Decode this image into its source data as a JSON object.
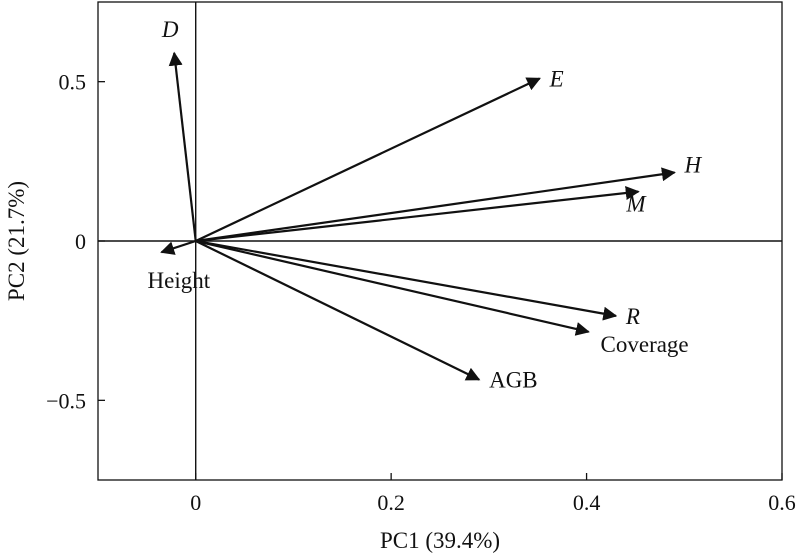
{
  "chart_data": {
    "type": "scatter",
    "subtype": "pca-biplot-vectors",
    "xlabel": "PC1 (39.4%)",
    "ylabel": "PC2 (21.7%)",
    "xlim": [
      -0.1,
      0.6
    ],
    "ylim": [
      -0.75,
      0.75
    ],
    "x_ticks": [
      {
        "value": 0,
        "label": "0"
      },
      {
        "value": 0.2,
        "label": "0.2"
      },
      {
        "value": 0.4,
        "label": "0.4"
      },
      {
        "value": 0.6,
        "label": "0.6"
      }
    ],
    "y_ticks": [
      {
        "value": 0.5,
        "label": "0.5"
      },
      {
        "value": 0,
        "label": "0"
      },
      {
        "value": -0.5,
        "label": "−0.5"
      }
    ],
    "zero_lines": true,
    "grid": false,
    "vectors": [
      {
        "name": "D",
        "x": -0.022,
        "y": 0.59,
        "italic": true,
        "anchor": "above"
      },
      {
        "name": "E",
        "x": 0.352,
        "y": 0.51,
        "italic": true,
        "anchor": "right"
      },
      {
        "name": "H",
        "x": 0.49,
        "y": 0.215,
        "italic": true,
        "anchor": "right-up"
      },
      {
        "name": "M",
        "x": 0.453,
        "y": 0.155,
        "italic": true,
        "anchor": "right-down"
      },
      {
        "name": "R",
        "x": 0.43,
        "y": -0.235,
        "italic": true,
        "anchor": "right"
      },
      {
        "name": "Coverage",
        "x": 0.402,
        "y": -0.285,
        "italic": false,
        "anchor": "below-right"
      },
      {
        "name": "AGB",
        "x": 0.29,
        "y": -0.435,
        "italic": false,
        "anchor": "right"
      },
      {
        "name": "Height",
        "x": -0.035,
        "y": -0.035,
        "italic": false,
        "anchor": "below"
      }
    ]
  }
}
